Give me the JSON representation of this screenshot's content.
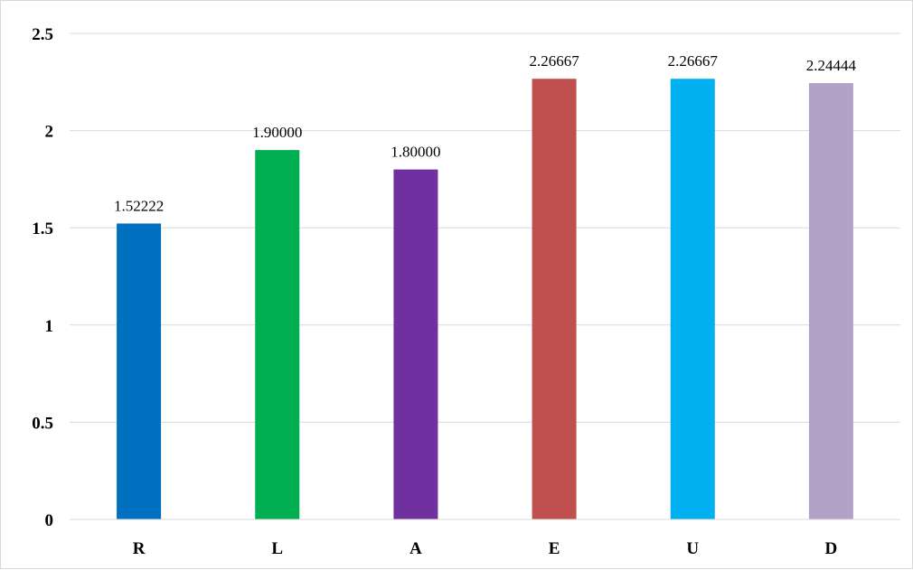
{
  "chart_data": {
    "type": "bar",
    "title": "",
    "xlabel": "",
    "ylabel": "",
    "categories": [
      "R",
      "L",
      "A",
      "E",
      "U",
      "D"
    ],
    "values": [
      1.52222,
      1.9,
      1.8,
      2.26667,
      2.26667,
      2.24444
    ],
    "data_labels": [
      "1.52222",
      "1.90000",
      "1.80000",
      "2.26667",
      "2.26667",
      "2.24444"
    ],
    "colors": [
      "#0070c0",
      "#00b050",
      "#7030a0",
      "#c0504d",
      "#00b0f0",
      "#b3a2c7"
    ],
    "ylim": [
      0,
      2.5
    ],
    "yticks": [
      0,
      0.5,
      1,
      1.5,
      2,
      2.5
    ],
    "ytick_labels": [
      "0",
      "0.5",
      "1",
      "1.5",
      "2",
      "2.5"
    ],
    "grid": true,
    "legend": "none"
  }
}
